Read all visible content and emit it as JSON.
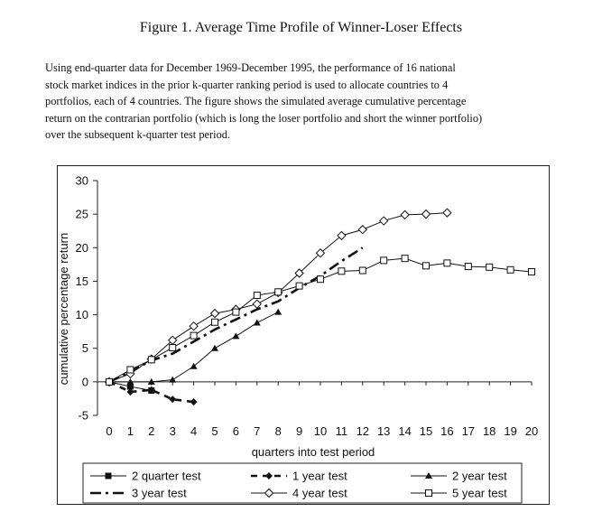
{
  "figure_title": "Figure 1. Average Time Profile of Winner-Loser Effects",
  "caption_lines": [
    "Using end-quarter data for December 1969-December 1995, the performance of 16 national",
    "stock market indices in the prior k-quarter ranking period is used to allocate countries to 4",
    "portfolios, each of 4 countries. The figure shows the simulated average cumulative percentage",
    "return on the contrarian portfolio (which is long the loser portfolio and short the winner portfolio)",
    "over the subsequent k-quarter test period."
  ],
  "chart_data": {
    "type": "line",
    "title": "",
    "xlabel": "quarters into test period",
    "ylabel": "cumulative percentage return",
    "xlim": [
      0,
      20
    ],
    "ylim": [
      -5,
      30
    ],
    "xticks": [
      "0",
      "1",
      "2",
      "3",
      "4",
      "5",
      "6",
      "7",
      "8",
      "9",
      "10",
      "11",
      "12",
      "13",
      "14",
      "15",
      "16",
      "17",
      "18",
      "19",
      "20"
    ],
    "yticks": [
      "-5",
      "0",
      "5",
      "10",
      "15",
      "20",
      "25",
      "30"
    ],
    "grid": false,
    "legend_position": "bottom",
    "series": [
      {
        "name": "2 quarter test",
        "style": "solid",
        "marker": "filled-square",
        "x": [
          0,
          1,
          2
        ],
        "y": [
          0,
          -0.7,
          -1.3
        ]
      },
      {
        "name": "1 year test",
        "style": "dashed",
        "marker": "filled-diamond",
        "x": [
          0,
          1,
          2,
          3,
          4
        ],
        "y": [
          0,
          -1.5,
          -1.2,
          -2.6,
          -3.0
        ]
      },
      {
        "name": "2 year test",
        "style": "solid",
        "marker": "filled-triangle",
        "x": [
          0,
          1,
          2,
          3,
          4,
          5,
          6,
          7,
          8
        ],
        "y": [
          0,
          0,
          0,
          0.3,
          2.3,
          5.0,
          6.8,
          8.8,
          10.4
        ]
      },
      {
        "name": "3 year test",
        "style": "dashdot",
        "marker": "none",
        "x": [
          0,
          1,
          2,
          3,
          4,
          5,
          6,
          7,
          8,
          9,
          10,
          11,
          12
        ],
        "y": [
          0,
          1.5,
          3.2,
          4.2,
          6.0,
          7.8,
          9.3,
          10.8,
          12.0,
          14.0,
          15.8,
          18.0,
          20.0
        ]
      },
      {
        "name": "4 year test",
        "style": "solid",
        "marker": "open-diamond",
        "x": [
          0,
          1,
          2,
          3,
          4,
          5,
          6,
          7,
          8,
          9,
          10,
          11,
          12,
          13,
          14,
          15,
          16
        ],
        "y": [
          0,
          1.2,
          3.4,
          6.2,
          8.3,
          10.2,
          10.8,
          11.6,
          13.3,
          16.2,
          19.2,
          21.8,
          22.7,
          24.0,
          24.9,
          25.0,
          25.2
        ]
      },
      {
        "name": "5 year test",
        "style": "solid",
        "marker": "open-square",
        "x": [
          0,
          1,
          2,
          3,
          4,
          5,
          6,
          7,
          8,
          9,
          10,
          11,
          12,
          13,
          14,
          15,
          16,
          17,
          18,
          19,
          20
        ],
        "y": [
          0,
          1.8,
          3.3,
          5.1,
          6.9,
          8.9,
          10.4,
          12.9,
          13.4,
          14.3,
          15.3,
          16.5,
          16.6,
          18.1,
          18.4,
          17.3,
          17.7,
          17.2,
          17.1,
          16.7,
          16.4
        ]
      }
    ]
  }
}
